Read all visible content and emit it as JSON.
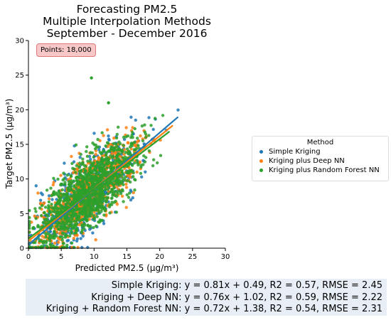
{
  "chart_data": {
    "type": "scatter",
    "title": [
      "Forecasting PM2.5",
      "Multiple Interpolation Methods",
      "September - December 2016"
    ],
    "annotation": "Points: 18,000",
    "xlabel": "Predicted PM2.5 (μg/m³)",
    "ylabel": "Target PM2.5 (μg/m³)",
    "xlim": [
      0,
      30
    ],
    "ylim": [
      0,
      30
    ],
    "xticks": [
      0,
      5,
      10,
      15,
      20,
      25,
      30
    ],
    "yticks": [
      0,
      5,
      10,
      15,
      20,
      25,
      30
    ],
    "grid": false,
    "legend": {
      "title": "Method",
      "placement": "right-outside",
      "entries": [
        "Simple Kriging",
        "Kriging plus Deep NN",
        "Kriging plus Random Forest NN"
      ]
    },
    "series": [
      {
        "name": "Simple Kriging",
        "color": "#1f77b4",
        "slope": 0.81,
        "intercept": 0.49,
        "x_range": [
          0,
          22.8
        ]
      },
      {
        "name": "Kriging plus Deep NN",
        "color": "#ff7f0e",
        "slope": 0.76,
        "intercept": 1.02,
        "x_range": [
          0,
          22
        ]
      },
      {
        "name": "Kriging plus Random Forest NN",
        "color": "#2ca02c",
        "slope": 0.72,
        "intercept": 1.38,
        "x_range": [
          0,
          21.5
        ]
      }
    ],
    "summary": [
      "Simple Kriging: y = 0.81x + 0.49, R2 = 0.57, RMSE = 2.45",
      "Kriging + Deep NN: y = 0.76x + 1.02, R2 = 0.59, RMSE = 2.22",
      "Kriging + Random Forest NN: y = 0.72x + 1.38, R2 = 0.54, RMSE = 2.31"
    ]
  }
}
